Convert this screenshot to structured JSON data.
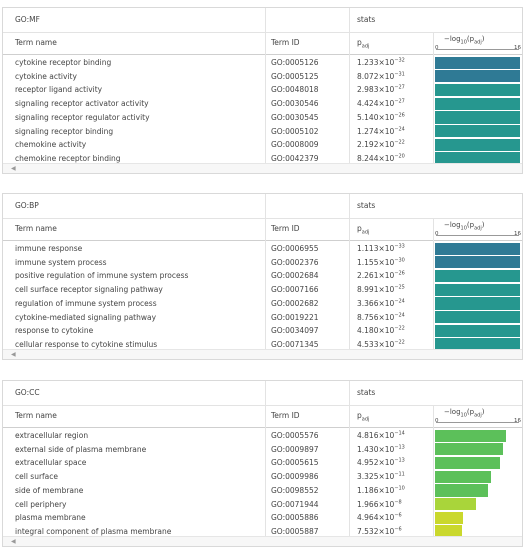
{
  "columns": {
    "term_name": "Term name",
    "term_id": "Term ID",
    "stats": "stats",
    "padj_base": "p",
    "padj_sub": "adj",
    "axis_label_prefix": "−log",
    "axis_label_base": "10",
    "axis_label_suffix": "(p",
    "axis_label_sub": "adj",
    "axis_label_end": ")",
    "axis_min": "0",
    "axis_max": "16"
  },
  "colors": {
    "dark_teal": "#2f7a95",
    "teal": "#26978f",
    "green": "#5cc05a",
    "yellow_green": "#a9d53a",
    "yellow": "#cad82d"
  },
  "sections": [
    {
      "title": "GO:MF",
      "rows": [
        {
          "name": "cytokine receptor binding",
          "id": "GO:0005126",
          "p_mant": "1.233",
          "p_exp": "−32",
          "neglog": 31.9
        },
        {
          "name": "cytokine activity",
          "id": "GO:0005125",
          "p_mant": "8.072",
          "p_exp": "−31",
          "neglog": 30.1
        },
        {
          "name": "receptor ligand activity",
          "id": "GO:0048018",
          "p_mant": "2.983",
          "p_exp": "−27",
          "neglog": 26.5
        },
        {
          "name": "signaling receptor activator activity",
          "id": "GO:0030546",
          "p_mant": "4.424",
          "p_exp": "−27",
          "neglog": 26.4
        },
        {
          "name": "signaling receptor regulator activity",
          "id": "GO:0030545",
          "p_mant": "5.140",
          "p_exp": "−26",
          "neglog": 25.3
        },
        {
          "name": "signaling receptor binding",
          "id": "GO:0005102",
          "p_mant": "1.274",
          "p_exp": "−24",
          "neglog": 23.9
        },
        {
          "name": "chemokine activity",
          "id": "GO:0008009",
          "p_mant": "2.192",
          "p_exp": "−22",
          "neglog": 21.7
        },
        {
          "name": "chemokine receptor binding",
          "id": "GO:0042379",
          "p_mant": "8.244",
          "p_exp": "−20",
          "neglog": 19.1
        }
      ]
    },
    {
      "title": "GO:BP",
      "rows": [
        {
          "name": "immune response",
          "id": "GO:0006955",
          "p_mant": "1.113",
          "p_exp": "−33",
          "neglog": 33.0
        },
        {
          "name": "immune system process",
          "id": "GO:0002376",
          "p_mant": "1.155",
          "p_exp": "−30",
          "neglog": 29.9
        },
        {
          "name": "positive regulation of immune system process",
          "id": "GO:0002684",
          "p_mant": "2.261",
          "p_exp": "−26",
          "neglog": 25.6
        },
        {
          "name": "cell surface receptor signaling pathway",
          "id": "GO:0007166",
          "p_mant": "8.991",
          "p_exp": "−25",
          "neglog": 24.0
        },
        {
          "name": "regulation of immune system process",
          "id": "GO:0002682",
          "p_mant": "3.366",
          "p_exp": "−24",
          "neglog": 23.5
        },
        {
          "name": "cytokine-mediated signaling pathway",
          "id": "GO:0019221",
          "p_mant": "8.756",
          "p_exp": "−24",
          "neglog": 23.1
        },
        {
          "name": "response to cytokine",
          "id": "GO:0034097",
          "p_mant": "4.180",
          "p_exp": "−22",
          "neglog": 21.4
        },
        {
          "name": "cellular response to cytokine stimulus",
          "id": "GO:0071345",
          "p_mant": "4.533",
          "p_exp": "−22",
          "neglog": 21.3
        }
      ]
    },
    {
      "title": "GO:CC",
      "rows": [
        {
          "name": "extracellular region",
          "id": "GO:0005576",
          "p_mant": "4.816",
          "p_exp": "−14",
          "neglog": 13.3
        },
        {
          "name": "external side of plasma membrane",
          "id": "GO:0009897",
          "p_mant": "1.430",
          "p_exp": "−13",
          "neglog": 12.8
        },
        {
          "name": "extracellular space",
          "id": "GO:0005615",
          "p_mant": "4.952",
          "p_exp": "−13",
          "neglog": 12.3
        },
        {
          "name": "cell surface",
          "id": "GO:0009986",
          "p_mant": "3.325",
          "p_exp": "−11",
          "neglog": 10.5
        },
        {
          "name": "side of membrane",
          "id": "GO:0098552",
          "p_mant": "1.186",
          "p_exp": "−10",
          "neglog": 9.9
        },
        {
          "name": "cell periphery",
          "id": "GO:0071944",
          "p_mant": "1.966",
          "p_exp": "−8",
          "neglog": 7.7
        },
        {
          "name": "plasma membrane",
          "id": "GO:0005886",
          "p_mant": "4.964",
          "p_exp": "−6",
          "neglog": 5.3
        },
        {
          "name": "integral component of plasma membrane",
          "id": "GO:0005887",
          "p_mant": "7.532",
          "p_exp": "−6",
          "neglog": 5.1
        }
      ]
    }
  ]
}
